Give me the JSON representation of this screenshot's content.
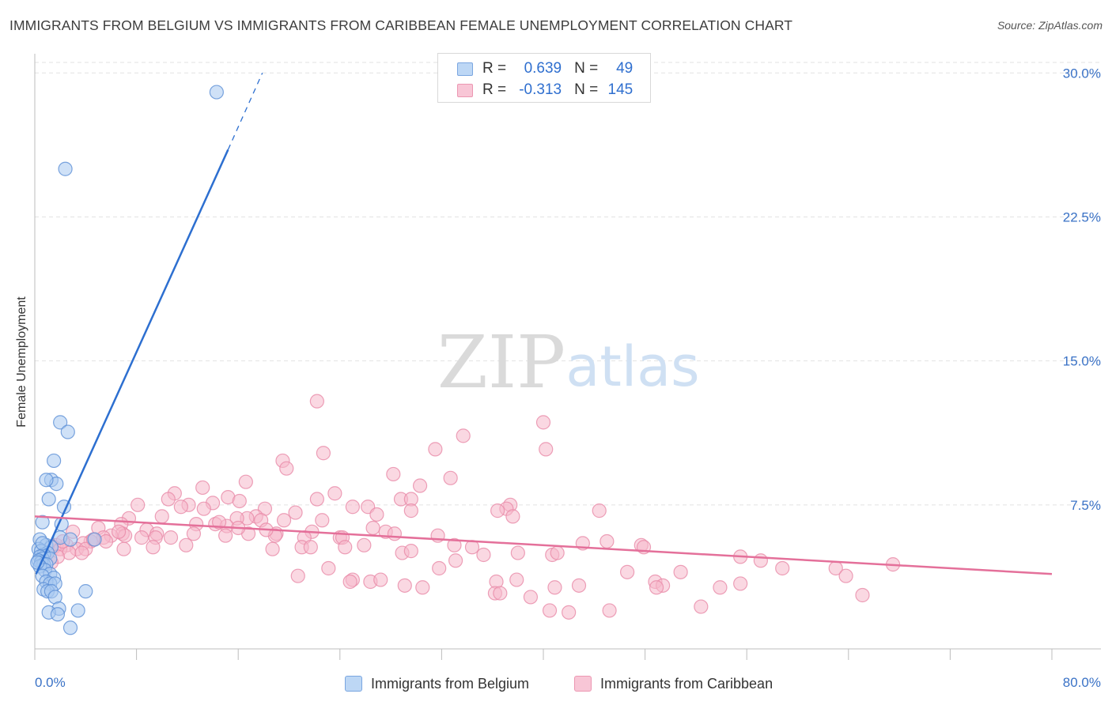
{
  "title": "IMMIGRANTS FROM BELGIUM VS IMMIGRANTS FROM CARIBBEAN FEMALE UNEMPLOYMENT CORRELATION CHART",
  "source": "Source: ZipAtlas.com",
  "watermark": {
    "zip": "ZIP",
    "atlas": "atlas"
  },
  "colors": {
    "blue_fill": "#a8c8f0",
    "blue_stroke": "#5b8fd6",
    "blue_line": "#2d6fd0",
    "pink_fill": "#f5b8cb",
    "pink_stroke": "#e98aa8",
    "pink_line": "#e4709a",
    "axis_text": "#3a72c6",
    "grid": "#e2e2e2"
  },
  "legend": {
    "rows": [
      {
        "r_label": "R =",
        "r_value": "0.639",
        "n_label": "N =",
        "n_value": "49"
      },
      {
        "r_label": "R =",
        "r_value": "-0.313",
        "n_label": "N =",
        "n_value": "145"
      }
    ]
  },
  "chart_data": {
    "type": "scatter",
    "title": "IMMIGRANTS FROM BELGIUM VS IMMIGRANTS FROM CARIBBEAN FEMALE UNEMPLOYMENT CORRELATION CHART",
    "xlabel": "",
    "ylabel": "Female Unemployment",
    "xlim": [
      0,
      80
    ],
    "ylim": [
      0,
      31
    ],
    "x_tick_labels": [
      "0.0%",
      "80.0%"
    ],
    "y_ticks": [
      7.5,
      15.0,
      22.5,
      30.0
    ],
    "y_tick_labels": [
      "7.5%",
      "15.0%",
      "22.5%",
      "30.0%"
    ],
    "series": [
      {
        "name": "Immigrants from Belgium",
        "color": "#a8c8f0",
        "trend": {
          "x0": 0.1,
          "y0": 3.9,
          "x1": 15.2,
          "y1": 26.0,
          "dash_to_x": 17.9,
          "dash_to_y": 30.0
        },
        "points": [
          [
            14.3,
            29.0
          ],
          [
            2.4,
            25.0
          ],
          [
            2.0,
            11.8
          ],
          [
            2.6,
            11.3
          ],
          [
            1.5,
            9.8
          ],
          [
            1.3,
            8.8
          ],
          [
            1.7,
            8.6
          ],
          [
            0.9,
            8.8
          ],
          [
            1.1,
            7.8
          ],
          [
            2.3,
            7.4
          ],
          [
            0.6,
            6.6
          ],
          [
            2.1,
            6.5
          ],
          [
            2.0,
            5.8
          ],
          [
            0.4,
            5.7
          ],
          [
            2.8,
            5.7
          ],
          [
            4.7,
            5.7
          ],
          [
            0.9,
            5.4
          ],
          [
            1.3,
            5.3
          ],
          [
            0.3,
            5.2
          ],
          [
            0.5,
            5.1
          ],
          [
            1.0,
            5.0
          ],
          [
            0.7,
            4.9
          ],
          [
            0.4,
            4.8
          ],
          [
            0.6,
            4.7
          ],
          [
            1.2,
            4.7
          ],
          [
            0.3,
            4.6
          ],
          [
            0.5,
            4.5
          ],
          [
            0.7,
            4.4
          ],
          [
            0.9,
            4.4
          ],
          [
            0.4,
            4.3
          ],
          [
            0.8,
            4.1
          ],
          [
            1.2,
            3.9
          ],
          [
            0.6,
            3.8
          ],
          [
            1.5,
            3.7
          ],
          [
            0.9,
            3.5
          ],
          [
            1.2,
            3.4
          ],
          [
            1.6,
            3.4
          ],
          [
            0.7,
            3.1
          ],
          [
            1.0,
            3.0
          ],
          [
            1.3,
            3.0
          ],
          [
            4.0,
            3.0
          ],
          [
            1.6,
            2.7
          ],
          [
            1.9,
            2.1
          ],
          [
            1.1,
            1.9
          ],
          [
            1.8,
            1.8
          ],
          [
            3.4,
            2.0
          ],
          [
            2.8,
            1.1
          ],
          [
            0.6,
            5.5
          ],
          [
            0.2,
            4.5
          ]
        ]
      },
      {
        "name": "Immigrants from Caribbean",
        "color": "#f5b8cb",
        "trend": {
          "x0": 0,
          "y0": 6.9,
          "x1": 80,
          "y1": 3.9
        },
        "points": [
          [
            22.2,
            12.9
          ],
          [
            40.0,
            11.8
          ],
          [
            33.7,
            11.1
          ],
          [
            31.5,
            10.4
          ],
          [
            40.2,
            10.4
          ],
          [
            22.7,
            10.2
          ],
          [
            19.5,
            9.8
          ],
          [
            19.8,
            9.4
          ],
          [
            28.2,
            9.1
          ],
          [
            32.7,
            8.9
          ],
          [
            16.6,
            8.7
          ],
          [
            30.3,
            8.5
          ],
          [
            13.2,
            8.4
          ],
          [
            11.0,
            8.1
          ],
          [
            23.6,
            8.1
          ],
          [
            15.2,
            7.9
          ],
          [
            10.5,
            7.8
          ],
          [
            22.2,
            7.8
          ],
          [
            28.8,
            7.8
          ],
          [
            29.6,
            7.8
          ],
          [
            16.1,
            7.7
          ],
          [
            14.0,
            7.6
          ],
          [
            8.1,
            7.5
          ],
          [
            12.1,
            7.5
          ],
          [
            25.0,
            7.4
          ],
          [
            26.2,
            7.4
          ],
          [
            11.5,
            7.4
          ],
          [
            37.4,
            7.5
          ],
          [
            18.1,
            7.3
          ],
          [
            29.6,
            7.2
          ],
          [
            37.1,
            7.3
          ],
          [
            36.4,
            7.2
          ],
          [
            13.3,
            7.3
          ],
          [
            20.5,
            7.1
          ],
          [
            26.9,
            7.0
          ],
          [
            44.4,
            7.2
          ],
          [
            17.4,
            6.9
          ],
          [
            16.7,
            6.8
          ],
          [
            7.4,
            6.8
          ],
          [
            10.0,
            6.9
          ],
          [
            15.9,
            6.8
          ],
          [
            17.8,
            6.7
          ],
          [
            37.6,
            6.9
          ],
          [
            22.6,
            6.7
          ],
          [
            19.6,
            6.7
          ],
          [
            14.2,
            6.5
          ],
          [
            12.7,
            6.5
          ],
          [
            15.1,
            6.4
          ],
          [
            6.8,
            6.5
          ],
          [
            5.0,
            6.3
          ],
          [
            8.8,
            6.2
          ],
          [
            3.0,
            6.1
          ],
          [
            21.8,
            6.1
          ],
          [
            27.6,
            6.1
          ],
          [
            28.3,
            6.0
          ],
          [
            16.8,
            6.0
          ],
          [
            19.0,
            6.0
          ],
          [
            9.6,
            6.0
          ],
          [
            6.9,
            6.0
          ],
          [
            7.1,
            5.9
          ],
          [
            15.0,
            5.9
          ],
          [
            18.9,
            5.9
          ],
          [
            6.0,
            5.9
          ],
          [
            5.4,
            5.8
          ],
          [
            24.0,
            5.8
          ],
          [
            31.7,
            5.9
          ],
          [
            24.2,
            5.8
          ],
          [
            4.4,
            5.6
          ],
          [
            8.4,
            5.8
          ],
          [
            21.2,
            5.8
          ],
          [
            9.5,
            5.8
          ],
          [
            10.7,
            5.8
          ],
          [
            3.8,
            5.5
          ],
          [
            5.6,
            5.6
          ],
          [
            2.5,
            5.4
          ],
          [
            11.9,
            5.4
          ],
          [
            25.9,
            5.4
          ],
          [
            33.0,
            5.4
          ],
          [
            1.7,
            5.4
          ],
          [
            3.3,
            5.2
          ],
          [
            9.3,
            5.3
          ],
          [
            7.0,
            5.2
          ],
          [
            1.5,
            5.3
          ],
          [
            21.0,
            5.3
          ],
          [
            43.1,
            5.5
          ],
          [
            47.7,
            5.4
          ],
          [
            47.9,
            5.3
          ],
          [
            2.0,
            5.2
          ],
          [
            4.0,
            5.2
          ],
          [
            18.7,
            5.2
          ],
          [
            21.7,
            5.3
          ],
          [
            24.4,
            5.3
          ],
          [
            34.4,
            5.3
          ],
          [
            28.9,
            5.0
          ],
          [
            2.7,
            5.0
          ],
          [
            3.7,
            5.0
          ],
          [
            40.7,
            4.9
          ],
          [
            1.8,
            4.8
          ],
          [
            35.3,
            4.9
          ],
          [
            41.1,
            5.0
          ],
          [
            29.6,
            5.1
          ],
          [
            55.5,
            4.8
          ],
          [
            57.1,
            4.6
          ],
          [
            1.3,
            4.5
          ],
          [
            33.1,
            4.6
          ],
          [
            67.5,
            4.4
          ],
          [
            23.1,
            4.2
          ],
          [
            31.8,
            4.2
          ],
          [
            58.8,
            4.2
          ],
          [
            63.0,
            4.2
          ],
          [
            46.6,
            4.0
          ],
          [
            20.7,
            3.8
          ],
          [
            50.8,
            4.0
          ],
          [
            36.3,
            3.5
          ],
          [
            37.9,
            3.6
          ],
          [
            63.8,
            3.8
          ],
          [
            48.8,
            3.5
          ],
          [
            49.4,
            3.3
          ],
          [
            25.0,
            3.6
          ],
          [
            26.4,
            3.5
          ],
          [
            24.8,
            3.5
          ],
          [
            27.2,
            3.6
          ],
          [
            42.8,
            3.3
          ],
          [
            40.9,
            3.2
          ],
          [
            36.2,
            2.9
          ],
          [
            36.6,
            2.9
          ],
          [
            53.9,
            3.2
          ],
          [
            55.5,
            3.4
          ],
          [
            39.0,
            2.7
          ],
          [
            48.9,
            3.2
          ],
          [
            65.1,
            2.8
          ],
          [
            45.2,
            2.0
          ],
          [
            40.5,
            2.0
          ],
          [
            42.0,
            1.9
          ],
          [
            52.4,
            2.2
          ],
          [
            29.1,
            3.3
          ],
          [
            30.5,
            3.2
          ],
          [
            4.6,
            5.7
          ],
          [
            6.6,
            6.1
          ],
          [
            12.5,
            6.0
          ],
          [
            14.5,
            6.6
          ],
          [
            16.0,
            6.3
          ],
          [
            18.2,
            6.2
          ],
          [
            26.6,
            6.3
          ],
          [
            2.2,
            5.6
          ],
          [
            38.0,
            5.0
          ],
          [
            45.0,
            5.6
          ]
        ]
      }
    ]
  },
  "bottom_legend": [
    {
      "label": "Immigrants from Belgium"
    },
    {
      "label": "Immigrants from Caribbean"
    }
  ]
}
